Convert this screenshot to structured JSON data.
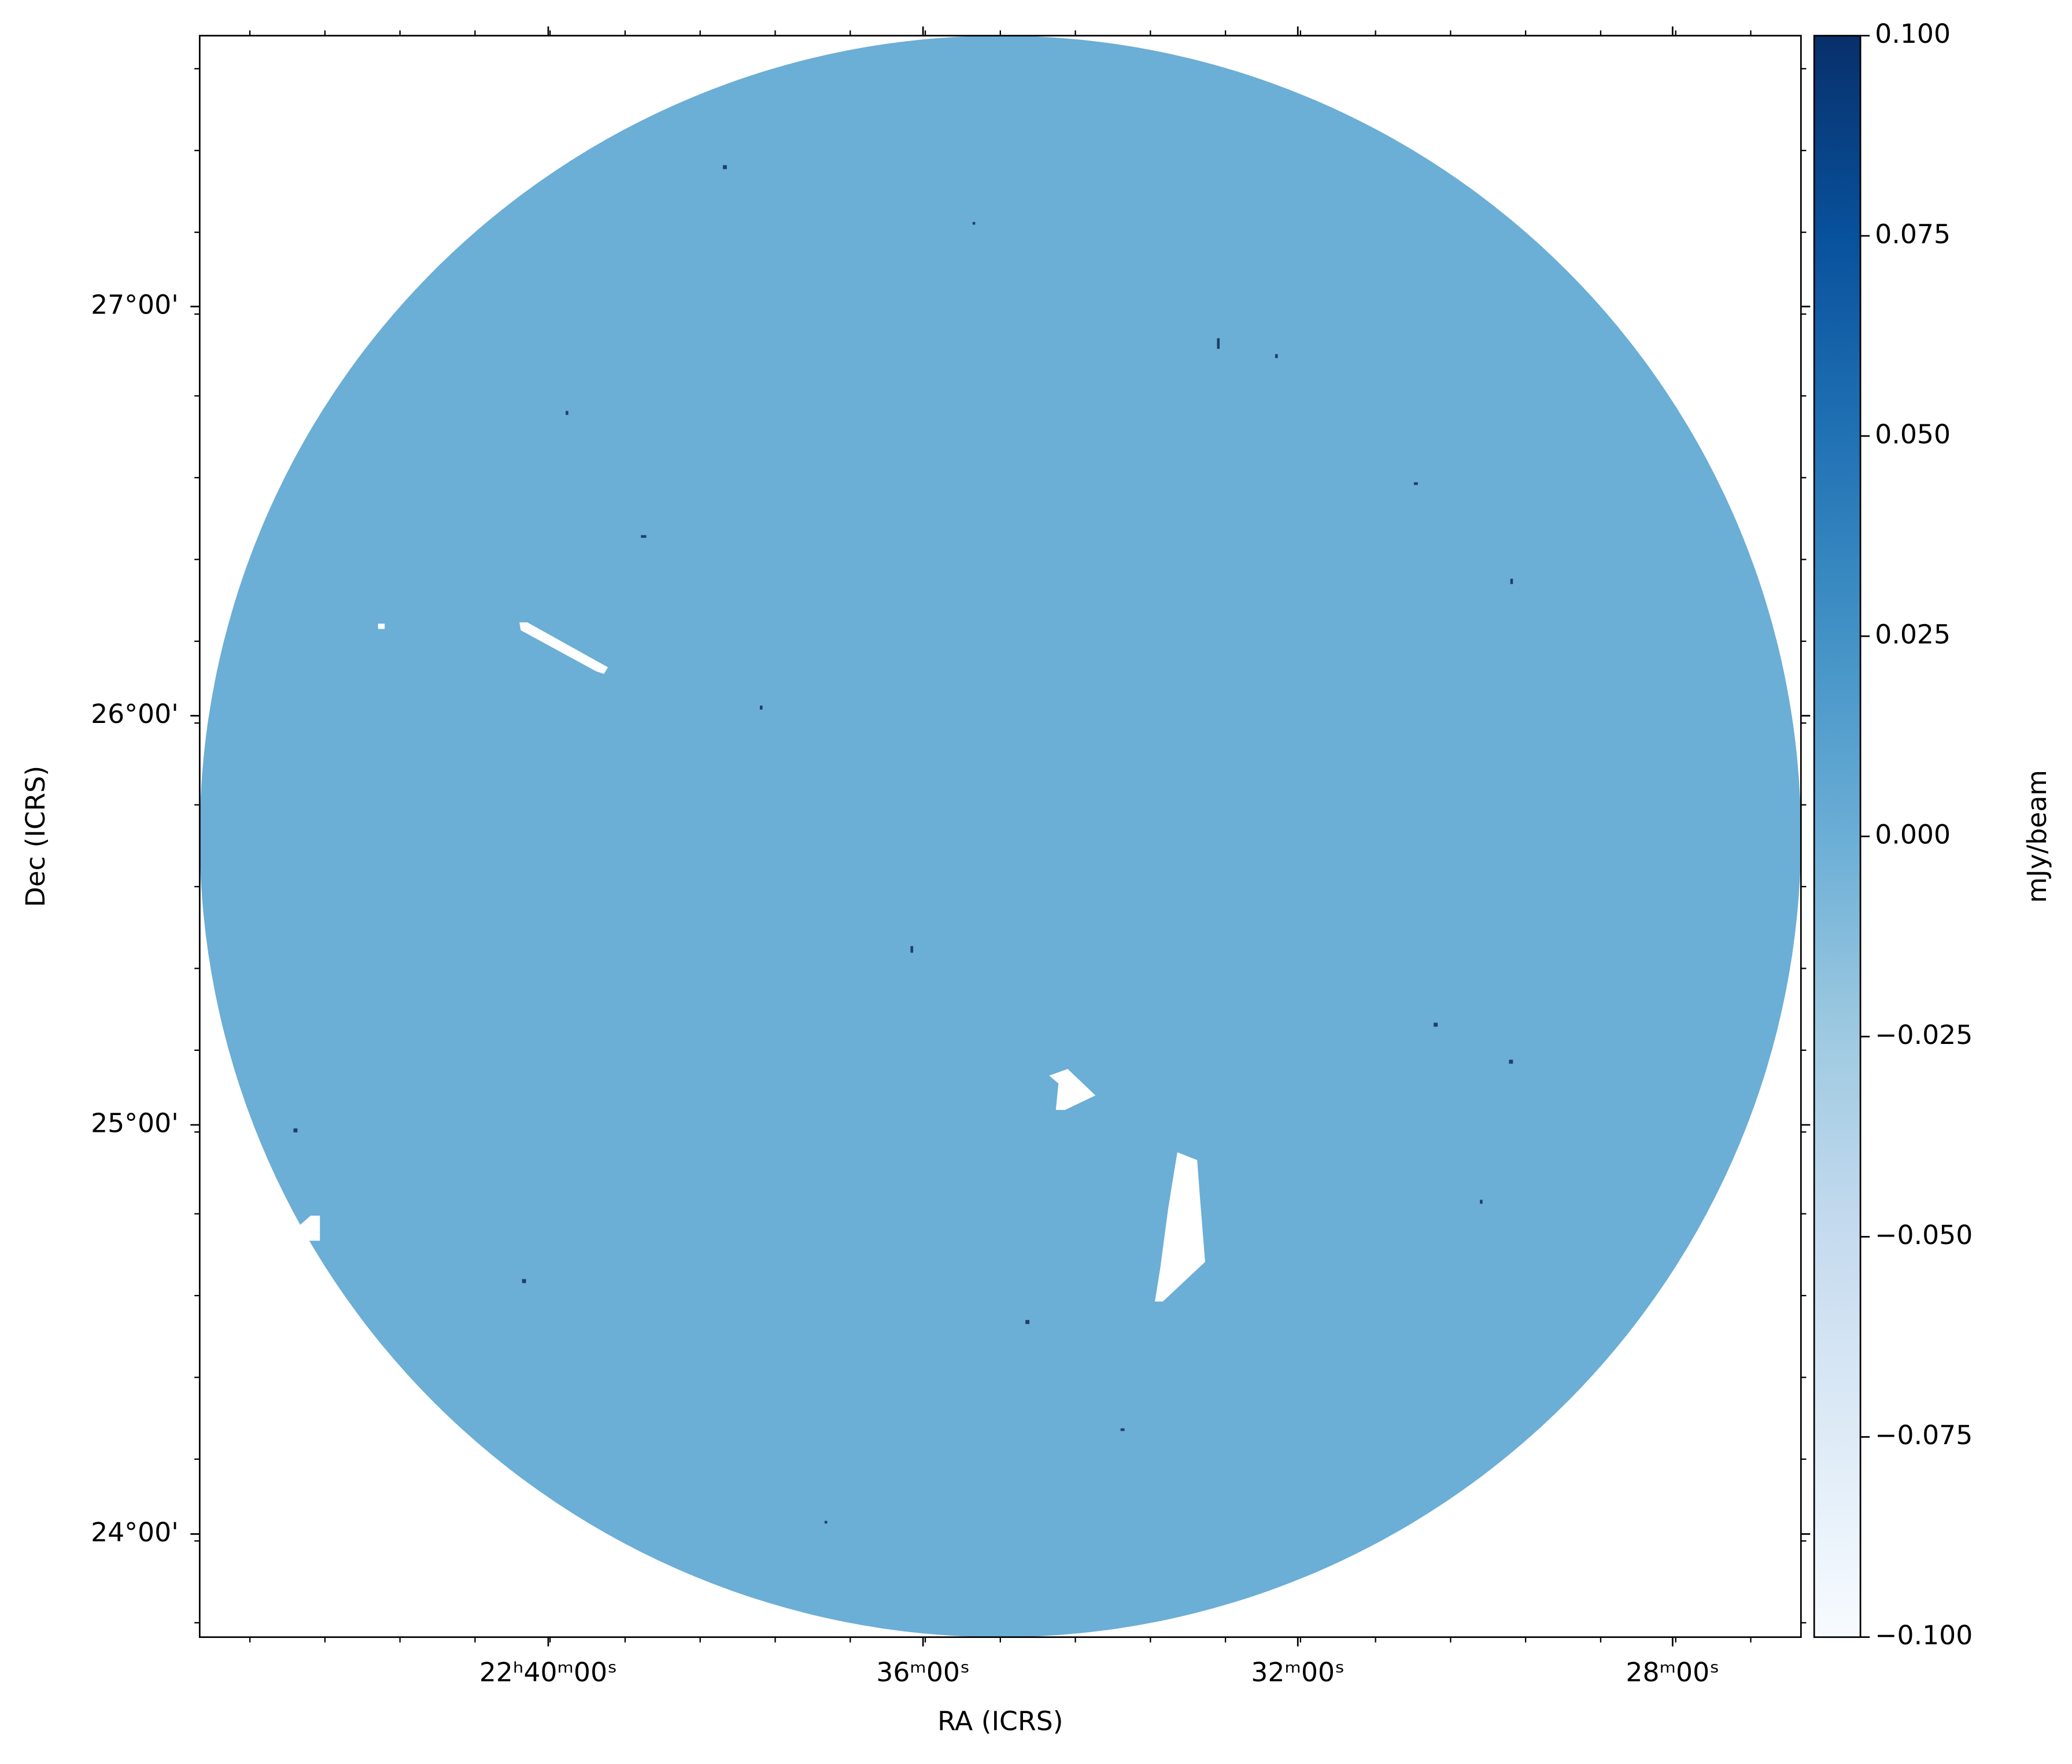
{
  "chart_data": {
    "type": "image",
    "xlabel": "RA (ICRS)",
    "ylabel": "Dec (ICRS)",
    "xlim": [
      43.72,
      26.63
    ],
    "xticks": [
      {
        "value": 40,
        "label": "22ʰ40ᵐ00ˢ"
      },
      {
        "value": 36,
        "label": "36ᵐ00ˢ"
      },
      {
        "value": 32,
        "label": "32ᵐ00ˢ"
      },
      {
        "value": 28,
        "label": "28ᵐ00ˢ"
      }
    ],
    "ylim": [
      23.748,
      27.662
    ],
    "yticks": [
      {
        "value": 27,
        "label": "27°00'"
      },
      {
        "value": 26,
        "label": "26°00'"
      },
      {
        "value": 25,
        "label": "25°00'"
      },
      {
        "value": 24,
        "label": "24°00'"
      }
    ],
    "image_color": "#6baed6",
    "colorbar": {
      "label": "mJy/beam",
      "cmap": [
        "#f7fbff",
        "#deebf7",
        "#c6dbef",
        "#9ecae1",
        "#6baed6",
        "#4292c6",
        "#2171b5",
        "#08519c",
        "#08306b"
      ],
      "clim": [
        -0.1,
        0.1
      ],
      "ticks": [
        {
          "value": 0.1,
          "label": "0.100"
        },
        {
          "value": 0.075,
          "label": "0.075"
        },
        {
          "value": 0.05,
          "label": "0.050"
        },
        {
          "value": 0.025,
          "label": "0.025"
        },
        {
          "value": 0,
          "label": "0.000"
        },
        {
          "value": -0.025,
          "label": "−0.025"
        },
        {
          "value": -0.05,
          "label": "−0.050"
        },
        {
          "value": -0.075,
          "label": "−0.075"
        },
        {
          "value": -0.1,
          "label": "−0.100"
        }
      ]
    }
  }
}
